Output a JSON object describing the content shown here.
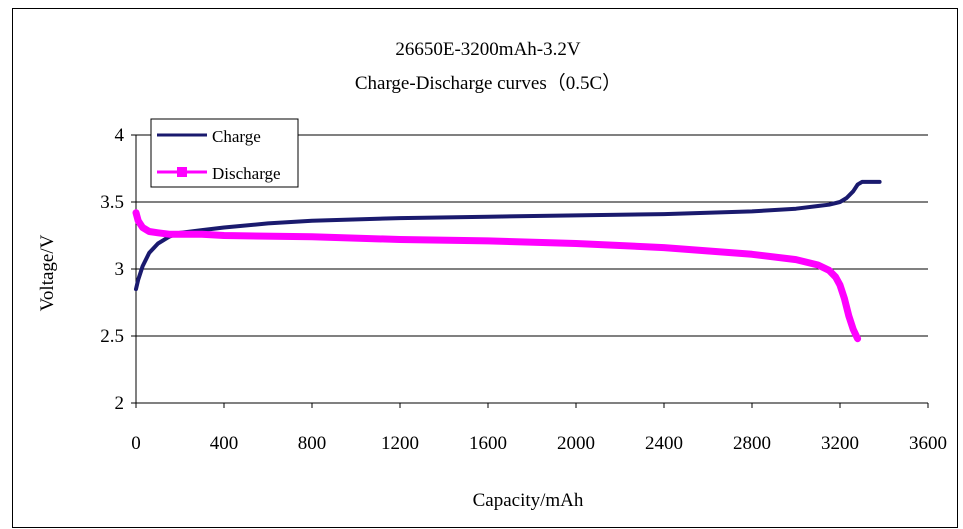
{
  "colors": {
    "charge": "#1a1a6e",
    "discharge": "#ff00ff",
    "grid": "#000000",
    "legend_border": "#000000"
  },
  "chart_data": {
    "type": "line",
    "title": "26650E-3200mAh-3.2V",
    "subtitle": "Charge-Discharge curves（0.5C）",
    "xlabel": "Capacity/mAh",
    "ylabel": "Voltage/V",
    "xlim": [
      0,
      3600
    ],
    "ylim": [
      2,
      4
    ],
    "x_ticks": [
      "0",
      "400",
      "800",
      "1200",
      "1600",
      "2000",
      "2400",
      "2800",
      "3200",
      "3600"
    ],
    "y_ticks": [
      "2",
      "2.5",
      "3",
      "3.5",
      "4"
    ],
    "grid": "horizontal",
    "legend_position": "top-left",
    "series": [
      {
        "name": "Charge",
        "color": "#1a1a6e",
        "x": [
          0,
          10,
          30,
          60,
          100,
          150,
          200,
          300,
          400,
          600,
          800,
          1200,
          1600,
          2000,
          2400,
          2800,
          3000,
          3100,
          3150,
          3200,
          3230,
          3260,
          3280,
          3300,
          3380
        ],
        "y": [
          2.85,
          2.92,
          3.02,
          3.12,
          3.19,
          3.24,
          3.27,
          3.29,
          3.31,
          3.34,
          3.36,
          3.38,
          3.39,
          3.4,
          3.41,
          3.43,
          3.45,
          3.47,
          3.48,
          3.5,
          3.53,
          3.58,
          3.63,
          3.65,
          3.65
        ]
      },
      {
        "name": "Discharge",
        "color": "#ff00ff",
        "x": [
          0,
          10,
          30,
          60,
          100,
          150,
          200,
          300,
          400,
          800,
          1200,
          1600,
          2000,
          2400,
          2800,
          3000,
          3100,
          3150,
          3180,
          3200,
          3220,
          3240,
          3260,
          3280
        ],
        "y": [
          3.42,
          3.36,
          3.31,
          3.28,
          3.27,
          3.26,
          3.26,
          3.26,
          3.25,
          3.24,
          3.22,
          3.21,
          3.19,
          3.16,
          3.11,
          3.07,
          3.03,
          2.99,
          2.94,
          2.88,
          2.78,
          2.65,
          2.55,
          2.48
        ]
      }
    ]
  }
}
